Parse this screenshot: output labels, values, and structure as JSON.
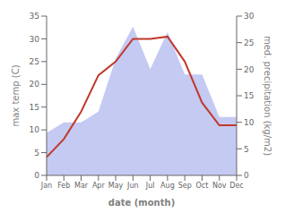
{
  "chart_data": {
    "type": "line",
    "xlabel": "date (month)",
    "ylabel": "max temp (C)",
    "y2label": "med. precipitation (kg/m2)",
    "categories": [
      "Jan",
      "Feb",
      "Mar",
      "Apr",
      "May",
      "Jun",
      "Jul",
      "Aug",
      "Sep",
      "Oct",
      "Nov",
      "Dec"
    ],
    "series": [
      {
        "type": "area",
        "axis": "y2",
        "color": "#c5caf2",
        "values": [
          8,
          10,
          10,
          12,
          22,
          28,
          20,
          27,
          19,
          19,
          11,
          11
        ]
      },
      {
        "type": "line",
        "color": "#c0392b",
        "values": [
          4,
          8,
          14,
          22,
          25,
          30,
          30,
          30.5,
          25,
          16,
          11,
          11
        ]
      }
    ],
    "ylim": [
      0,
      35
    ],
    "yticks": [
      0,
      5,
      10,
      15,
      20,
      25,
      30,
      35
    ],
    "y2lim": [
      0,
      30
    ],
    "y2ticks": [
      0,
      5,
      10,
      15,
      20,
      25,
      30
    ],
    "grid": false
  }
}
